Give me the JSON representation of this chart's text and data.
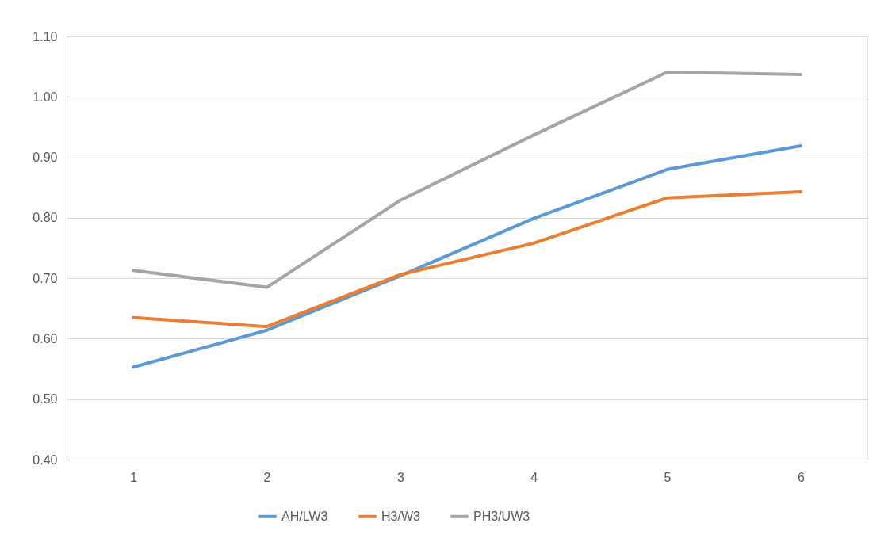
{
  "chart_data": {
    "type": "line",
    "categories": [
      "1",
      "2",
      "3",
      "4",
      "5",
      "6"
    ],
    "series": [
      {
        "name": "AH/LW3",
        "color": "#5b9bd5",
        "values": [
          0.553,
          0.614,
          0.704,
          0.799,
          0.88,
          0.919
        ]
      },
      {
        "name": "H3/W3",
        "color": "#ed7d31",
        "values": [
          0.635,
          0.62,
          0.706,
          0.758,
          0.833,
          0.843
        ]
      },
      {
        "name": "PH3/UW3",
        "color": "#a5a5a5",
        "values": [
          0.713,
          0.685,
          0.829,
          0.937,
          1.041,
          1.037
        ]
      }
    ],
    "ylim": [
      0.4,
      1.1
    ],
    "yticks": [
      {
        "value": 0.4,
        "label": "0.40"
      },
      {
        "value": 0.5,
        "label": "0.50"
      },
      {
        "value": 0.6,
        "label": "0.60"
      },
      {
        "value": 0.7,
        "label": "0.70"
      },
      {
        "value": 0.8,
        "label": "0.80"
      },
      {
        "value": 0.9,
        "label": "0.90"
      },
      {
        "value": 1.0,
        "label": "1.00"
      },
      {
        "value": 1.1,
        "label": "1.10"
      }
    ],
    "grid": "y",
    "legend": "bottom",
    "marker": "none",
    "line_style": "solid"
  }
}
